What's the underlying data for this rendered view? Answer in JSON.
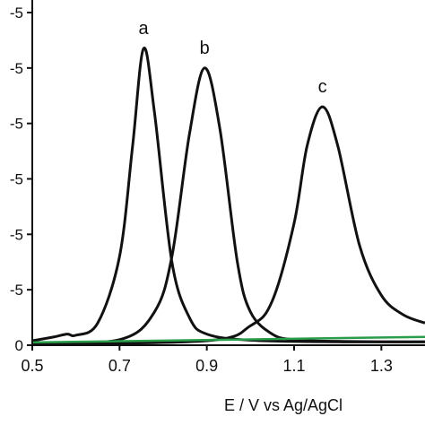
{
  "chart_data": {
    "type": "line",
    "xlabel": "E / V vs Ag/AgCl",
    "ylabel": "",
    "xlim": [
      0.5,
      1.4
    ],
    "ylim": [
      0,
      6
    ],
    "x_ticks": [
      "0.5",
      "0.7",
      "0.9",
      "1.1",
      "1.3"
    ],
    "y_tick_labels": [
      "0",
      "-5",
      "-5",
      "-5",
      "-5",
      "-5",
      "-5"
    ],
    "annotations": [
      "a",
      "b",
      "c"
    ],
    "colors": {
      "curves": "#111111",
      "baseline": "#2a9d4a"
    },
    "series": [
      {
        "name": "a",
        "x": [
          0.5,
          0.55,
          0.58,
          0.6,
          0.65,
          0.7,
          0.73,
          0.755,
          0.78,
          0.82,
          0.86,
          0.9,
          1.0,
          1.2,
          1.4
        ],
        "y": [
          0.08,
          0.15,
          0.2,
          0.18,
          0.4,
          1.6,
          3.6,
          5.35,
          4.2,
          1.5,
          0.5,
          0.2,
          0.09,
          0.06,
          0.06
        ]
      },
      {
        "name": "b",
        "x": [
          0.5,
          0.7,
          0.78,
          0.82,
          0.86,
          0.895,
          0.93,
          0.97,
          1.0,
          1.05,
          1.1,
          1.2,
          1.4
        ],
        "y": [
          0.04,
          0.1,
          0.6,
          1.6,
          3.8,
          5.0,
          3.9,
          1.5,
          0.6,
          0.2,
          0.1,
          0.07,
          0.06
        ]
      },
      {
        "name": "c",
        "x": [
          0.5,
          0.9,
          1.0,
          1.05,
          1.1,
          1.13,
          1.165,
          1.2,
          1.25,
          1.3,
          1.35,
          1.4
        ],
        "y": [
          0.02,
          0.08,
          0.35,
          0.8,
          2.2,
          3.6,
          4.3,
          3.6,
          1.8,
          0.9,
          0.55,
          0.4
        ]
      },
      {
        "name": "",
        "x": [
          0.5,
          1.4
        ],
        "y": [
          0.05,
          0.15
        ]
      }
    ]
  }
}
